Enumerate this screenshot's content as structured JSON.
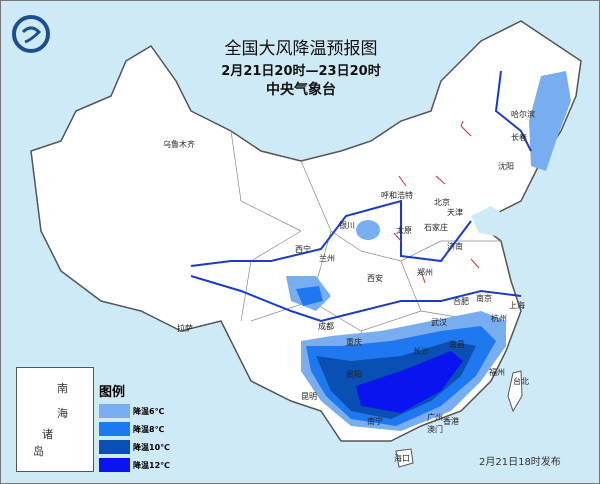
{
  "title": "全国大风降温预报图",
  "period": "2月21日20时—23日20时",
  "issuer": "中央气象台",
  "issued_time": "2月21日18时发布",
  "legend": {
    "title": "图例",
    "items": [
      {
        "label": "降温6℃",
        "color": "#78aef0"
      },
      {
        "label": "降温8℃",
        "color": "#1e78f0"
      },
      {
        "label": "降温10℃",
        "color": "#0a50b4"
      },
      {
        "label": "降温12℃",
        "color": "#0a14f0"
      }
    ]
  },
  "inset": {
    "label_chars": [
      "南",
      "海",
      "诸",
      "岛"
    ]
  },
  "cities": [
    {
      "name": "乌鲁木齐"
    },
    {
      "name": "哈尔滨"
    },
    {
      "name": "长春"
    },
    {
      "name": "沈阳"
    },
    {
      "name": "呼和浩特"
    },
    {
      "name": "北京"
    },
    {
      "name": "天津"
    },
    {
      "name": "石家庄"
    },
    {
      "name": "太原"
    },
    {
      "name": "银川"
    },
    {
      "name": "西宁"
    },
    {
      "name": "兰州"
    },
    {
      "name": "西安"
    },
    {
      "name": "郑州"
    },
    {
      "name": "济南"
    },
    {
      "name": "合肥"
    },
    {
      "name": "南京"
    },
    {
      "name": "上海"
    },
    {
      "name": "杭州"
    },
    {
      "name": "武汉"
    },
    {
      "name": "长沙"
    },
    {
      "name": "南昌"
    },
    {
      "name": "福州"
    },
    {
      "name": "台北"
    },
    {
      "name": "广州"
    },
    {
      "name": "香港"
    },
    {
      "name": "澳门"
    },
    {
      "name": "南宁"
    },
    {
      "name": "海口"
    },
    {
      "name": "贵阳"
    },
    {
      "name": "昆明"
    },
    {
      "name": "成都"
    },
    {
      "name": "重庆"
    },
    {
      "name": "拉萨"
    }
  ],
  "colors": {
    "sea": "#cfeaf7",
    "land": "#ffffff",
    "river": "#1a3cc8",
    "border": "#555555",
    "wind_arrow": "#c83232"
  }
}
